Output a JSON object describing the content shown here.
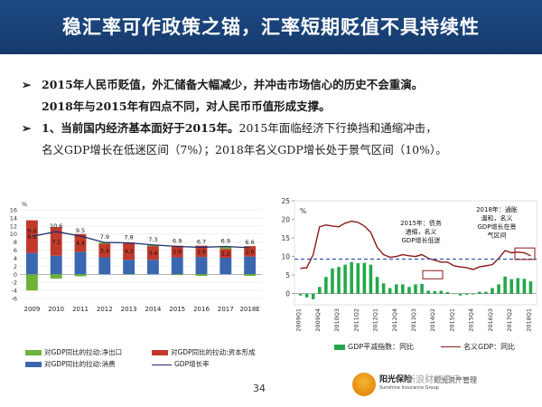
{
  "header": {
    "title": "稳汇率可作政策之锚，汇率短期贬值不具持续性"
  },
  "bullets": [
    {
      "marker": "➢",
      "line1": "2015年人民币贬值，外汇储备大幅减少，并冲击市场信心的历史不会重演。",
      "line2": "2018年与2015年有四点不同，对人民币币值形成支撑。"
    },
    {
      "marker": "➢",
      "line1_strong": "1、当前国内经济基本面好于2015年。",
      "line1_rest": "2015年面临经济下行换挡和通缩冲击，",
      "line2": "名义GDP增长在低迷区间（7%）；2018年名义GDP增长处于景气区间（10%）。"
    }
  ],
  "colors": {
    "consumption": "#3b66b0",
    "capital": "#c0392b",
    "netexport": "#6bb33a",
    "gdpline": "#1f2e6b",
    "deflator": "#22a84a",
    "nominal": "#8b1a1a",
    "dashed": "#2f5aa8",
    "banner": "#1d4a84"
  },
  "chart_data": [
    {
      "type": "bar",
      "stacked": true,
      "categories": [
        "2009",
        "2010",
        "2011",
        "2012",
        "2013",
        "2014",
        "2015",
        "2016",
        "2017",
        "2018E"
      ],
      "unit_label": "%",
      "series": [
        {
          "name": "对GDP同比的拉动:消费",
          "values": [
            5.3,
            4.6,
            5.6,
            4.2,
            3.6,
            3.6,
            4.2,
            4.3,
            4.1,
            4.4
          ]
        },
        {
          "name": "对GDP同比的拉动:资本形成",
          "values": [
            8.1,
            7.1,
            4.4,
            3.4,
            4.3,
            3.4,
            2.9,
            2.8,
            2.2,
            2.6
          ]
        },
        {
          "name": "对GDP同比的拉动:净出口",
          "values": [
            -4.0,
            -1.1,
            -0.5,
            0.3,
            -0.1,
            0.3,
            -0.2,
            -0.4,
            0.6,
            -0.4
          ]
        }
      ],
      "line": {
        "name": "GDP增长率",
        "values": [
          9.4,
          10.6,
          9.5,
          7.9,
          7.8,
          7.3,
          6.9,
          6.7,
          6.9,
          6.6
        ]
      },
      "data_labels": {
        "line": [
          "9.4",
          "10.6",
          "9.5",
          "7.9",
          "7.8",
          "7.3",
          "6.9",
          "6.7",
          "6.9",
          "6.6"
        ],
        "capital": [
          "8.1",
          "7.1",
          "4.4",
          "3.4",
          "4.3",
          "3.4",
          "2.9",
          "2.8",
          "2.2",
          "2.6"
        ]
      },
      "ylim": [
        -6,
        16
      ],
      "yticks": [
        "-6",
        "-4",
        "-2",
        "0",
        "2",
        "4",
        "6",
        "8",
        "10",
        "12",
        "14",
        "16"
      ]
    },
    {
      "type": "bar",
      "unit_label": "%",
      "x_tick_labels": [
        "2009Q1",
        "2009Q4",
        "2010Q3",
        "2011Q2",
        "2012Q1",
        "2012Q4",
        "2013Q3",
        "2014Q2",
        "2015Q1",
        "2015Q4",
        "2016Q3",
        "2017Q2",
        "2018Q1"
      ],
      "categories": [
        "2009Q1",
        "2009Q2",
        "2009Q3",
        "2009Q4",
        "2010Q1",
        "2010Q2",
        "2010Q3",
        "2010Q4",
        "2011Q1",
        "2011Q2",
        "2011Q3",
        "2011Q4",
        "2012Q1",
        "2012Q2",
        "2012Q3",
        "2012Q4",
        "2013Q1",
        "2013Q2",
        "2013Q3",
        "2013Q4",
        "2014Q1",
        "2014Q2",
        "2014Q3",
        "2014Q4",
        "2015Q1",
        "2015Q2",
        "2015Q3",
        "2015Q4",
        "2016Q1",
        "2016Q2",
        "2016Q3",
        "2016Q4",
        "2017Q1",
        "2017Q2",
        "2017Q3",
        "2017Q4",
        "2018Q1"
      ],
      "bars": {
        "name": "GDP平减指数：同比",
        "values": [
          -0.5,
          -1,
          -1.5,
          1.8,
          4.5,
          6.8,
          7.2,
          7.8,
          8.5,
          8.2,
          8.3,
          7.8,
          4.5,
          2.8,
          1.5,
          2.5,
          2.5,
          1.8,
          2.5,
          2.6,
          0.8,
          0.7,
          0.8,
          0.4,
          0,
          -0.5,
          -0.3,
          -0.2,
          0.5,
          0.5,
          1.5,
          2.5,
          4.6,
          3.9,
          4.2,
          4.0,
          3.3
        ]
      },
      "line": {
        "name": "名义GDP：同比",
        "values": [
          6.8,
          7.0,
          10.5,
          18.0,
          18.5,
          18.2,
          18.0,
          19.0,
          19.5,
          19.2,
          18.2,
          16.5,
          12.5,
          10.5,
          9.8,
          10.0,
          10.5,
          10.2,
          10.0,
          10.5,
          9.5,
          9.0,
          8.5,
          8.5,
          7.5,
          7.2,
          7.0,
          6.5,
          7.2,
          7.5,
          7.8,
          9.5,
          11.6,
          11.0,
          11.2,
          11.0,
          10.2
        ]
      },
      "reference_line": 9.3,
      "ylim": [
        -3,
        25
      ],
      "yticks": [
        "25",
        "20",
        "15",
        "10",
        "5",
        "0"
      ],
      "annotations": [
        {
          "text_lines": [
            "2015年：债务",
            "通缩，名义",
            "GDP增长低迷"
          ]
        },
        {
          "text_lines": [
            "2018年：通胀",
            "温和，名义",
            "GDP增长在景",
            "气区间"
          ]
        }
      ]
    }
  ],
  "page_number": "34",
  "footer": {
    "company": "阳光保险",
    "company_en": "Sunshine Insurance Group",
    "asset": "阳光资产管理",
    "watermark": "新浪财经资讯"
  }
}
